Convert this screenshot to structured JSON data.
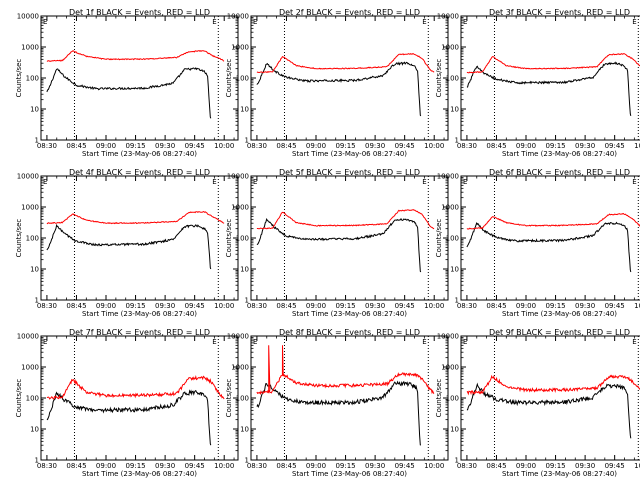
{
  "figure": {
    "shared": {
      "xlabel": "Start Time (23-May-06 08:27:40)",
      "ylabel": "Counts/sec",
      "xticks": [
        "08:30",
        "08:45",
        "09:00",
        "09:15",
        "09:30",
        "09:45",
        "10:00"
      ],
      "yticks": [
        "1",
        "10",
        "100",
        "1000",
        "10000"
      ],
      "corner_labels": [
        "E",
        "E"
      ],
      "colors": {
        "black_series": "#000000",
        "red_series": "#ff0000",
        "marker": "#000000"
      }
    }
  },
  "chart_data": [
    {
      "type": "line",
      "title": "Det 1f BLACK = Events, RED = LLD",
      "xlabel": "Start Time (23-May-06 08:27:40)",
      "ylabel": "Counts/sec",
      "x_minutes_from_0830": [
        0,
        90
      ],
      "xlim_minutes": [
        -3,
        97
      ],
      "ylim": [
        1,
        10000
      ],
      "yscale": "log",
      "markers_minutes": [
        14,
        87
      ],
      "series": [
        {
          "name": "Events (black)",
          "peak1": 200,
          "peak2": 200,
          "baseline": 45,
          "start": 35,
          "end": 5
        },
        {
          "name": "LLD (red)",
          "peak1": 750,
          "peak2": 750,
          "baseline": 400,
          "start": 350,
          "end": 350
        }
      ]
    },
    {
      "type": "line",
      "title": "Det 2f BLACK = Events, RED = LLD",
      "xlabel": "Start Time (23-May-06 08:27:40)",
      "ylabel": "Counts/sec",
      "x_minutes_from_0830": [
        0,
        90
      ],
      "xlim_minutes": [
        -3,
        97
      ],
      "ylim": [
        1,
        10000
      ],
      "yscale": "log",
      "markers_minutes": [
        14,
        87
      ],
      "series": [
        {
          "name": "Events (black)",
          "peak1": 300,
          "peak2": 300,
          "baseline": 80,
          "start": 60,
          "end": 6
        },
        {
          "name": "LLD (red)",
          "peak1": 500,
          "peak2": 600,
          "baseline": 200,
          "start": 150,
          "end": 150
        }
      ]
    },
    {
      "type": "line",
      "title": "Det 3f BLACK = Events, RED = LLD",
      "xlabel": "Start Time (23-May-06 08:27:40)",
      "ylabel": "Counts/sec",
      "x_minutes_from_0830": [
        0,
        90
      ],
      "xlim_minutes": [
        -3,
        97
      ],
      "ylim": [
        1,
        10000
      ],
      "yscale": "log",
      "markers_minutes": [
        14,
        87
      ],
      "series": [
        {
          "name": "Events (black)",
          "peak1": 250,
          "peak2": 300,
          "baseline": 70,
          "start": 50,
          "end": 6
        },
        {
          "name": "LLD (red)",
          "peak1": 500,
          "peak2": 600,
          "baseline": 200,
          "start": 150,
          "end": 200
        }
      ]
    },
    {
      "type": "line",
      "title": "Det 4f BLACK = Events, RED = LLD",
      "xlabel": "Start Time (23-May-06 08:27:40)",
      "ylabel": "Counts/sec",
      "x_minutes_from_0830": [
        0,
        90
      ],
      "xlim_minutes": [
        -3,
        97
      ],
      "ylim": [
        1,
        10000
      ],
      "yscale": "log",
      "markers_minutes": [
        14,
        87
      ],
      "series": [
        {
          "name": "Events (black)",
          "peak1": 250,
          "peak2": 250,
          "baseline": 60,
          "start": 40,
          "end": 10
        },
        {
          "name": "LLD (red)",
          "peak1": 600,
          "peak2": 700,
          "baseline": 300,
          "start": 300,
          "end": 300
        }
      ]
    },
    {
      "type": "line",
      "title": "Det 5f BLACK = Events, RED = LLD",
      "xlabel": "Start Time (23-May-06 08:27:40)",
      "ylabel": "Counts/sec",
      "x_minutes_from_0830": [
        0,
        90
      ],
      "xlim_minutes": [
        -3,
        97
      ],
      "ylim": [
        1,
        10000
      ],
      "yscale": "log",
      "markers_minutes": [
        14,
        87
      ],
      "series": [
        {
          "name": "Events (black)",
          "peak1": 400,
          "peak2": 400,
          "baseline": 90,
          "start": 60,
          "end": 8
        },
        {
          "name": "LLD (red)",
          "peak1": 700,
          "peak2": 800,
          "baseline": 250,
          "start": 200,
          "end": 200
        }
      ]
    },
    {
      "type": "line",
      "title": "Det 6f BLACK = Events, RED = LLD",
      "xlabel": "Start Time (23-May-06 08:27:40)",
      "ylabel": "Counts/sec",
      "x_minutes_from_0830": [
        0,
        90
      ],
      "xlim_minutes": [
        -3,
        97
      ],
      "ylim": [
        1,
        10000
      ],
      "yscale": "log",
      "markers_minutes": [
        14,
        87
      ],
      "series": [
        {
          "name": "Events (black)",
          "peak1": 300,
          "peak2": 300,
          "baseline": 80,
          "start": 50,
          "end": 8
        },
        {
          "name": "LLD (red)",
          "peak1": 500,
          "peak2": 600,
          "baseline": 250,
          "start": 200,
          "end": 200
        }
      ]
    },
    {
      "type": "line",
      "title": "Det 7f BLACK = Events, RED = LLD",
      "xlabel": "Start Time (23-May-06 08:27:40)",
      "ylabel": "Counts/sec",
      "x_minutes_from_0830": [
        0,
        90
      ],
      "xlim_minutes": [
        -3,
        97
      ],
      "ylim": [
        1,
        10000
      ],
      "yscale": "log",
      "markers_minutes": [
        14,
        87
      ],
      "series": [
        {
          "name": "Events (black)",
          "peak1": 150,
          "peak2": 150,
          "baseline": 40,
          "start": 20,
          "end": 3
        },
        {
          "name": "LLD (red)",
          "peak1": 400,
          "peak2": 450,
          "baseline": 120,
          "start": 100,
          "end": 100
        }
      ]
    },
    {
      "type": "line",
      "title": "Det 8f BLACK = Events, RED = LLD",
      "xlabel": "Start Time (23-May-06 08:27:40)",
      "ylabel": "Counts/sec",
      "x_minutes_from_0830": [
        0,
        90
      ],
      "xlim_minutes": [
        -3,
        97
      ],
      "ylim": [
        1,
        10000
      ],
      "yscale": "log",
      "markers_minutes": [
        14,
        87
      ],
      "series": [
        {
          "name": "Events (black)",
          "peak1": 300,
          "peak2": 300,
          "baseline": 70,
          "start": 50,
          "end": 3
        },
        {
          "name": "LLD (red)",
          "peak1": 5000,
          "peak2": 600,
          "baseline": 250,
          "start": 150,
          "end": 150
        }
      ]
    },
    {
      "type": "line",
      "title": "Det 9f BLACK = Events, RED = LLD",
      "xlabel": "Start Time (23-May-06 08:27:40)",
      "ylabel": "Counts/sec",
      "x_minutes_from_0830": [
        0,
        90
      ],
      "xlim_minutes": [
        -3,
        97
      ],
      "ylim": [
        1,
        10000
      ],
      "yscale": "log",
      "markers_minutes": [
        14,
        87
      ],
      "series": [
        {
          "name": "Events (black)",
          "peak1": 250,
          "peak2": 250,
          "baseline": 70,
          "start": 40,
          "end": 5
        },
        {
          "name": "LLD (red)",
          "peak1": 500,
          "peak2": 500,
          "baseline": 180,
          "start": 150,
          "end": 150
        }
      ]
    }
  ]
}
